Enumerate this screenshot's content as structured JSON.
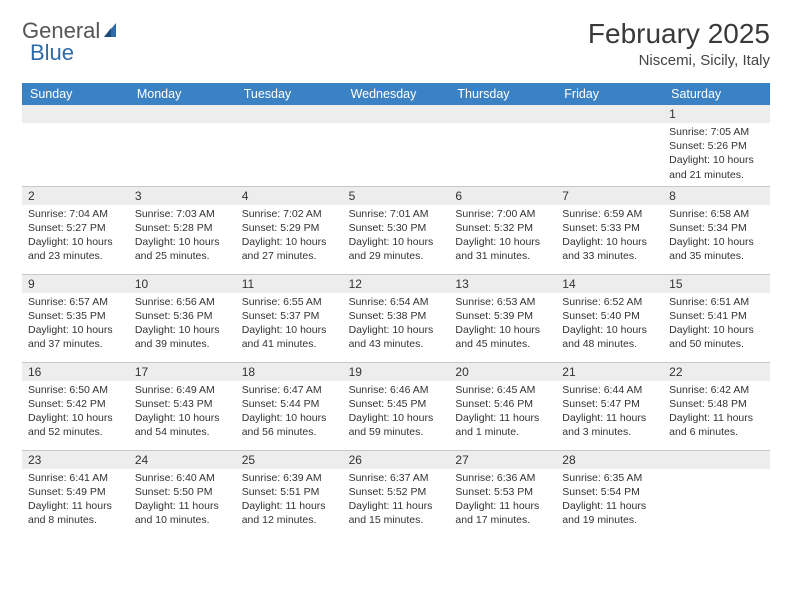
{
  "brand": {
    "part1": "General",
    "part2": "Blue"
  },
  "title": "February 2025",
  "location": "Niscemi, Sicily, Italy",
  "colors": {
    "header_bg": "#3b82c4",
    "header_fg": "#ffffff",
    "daynum_bg": "#ededed",
    "border": "#c8c8c8",
    "logo_blue": "#2f6ba8"
  },
  "weekdays": [
    "Sunday",
    "Monday",
    "Tuesday",
    "Wednesday",
    "Thursday",
    "Friday",
    "Saturday"
  ],
  "grid": {
    "rows": 5,
    "cols": 7,
    "start_index": 6,
    "days_in_month": 28
  },
  "days": {
    "1": {
      "sunrise": "Sunrise: 7:05 AM",
      "sunset": "Sunset: 5:26 PM",
      "dl1": "Daylight: 10 hours",
      "dl2": "and 21 minutes."
    },
    "2": {
      "sunrise": "Sunrise: 7:04 AM",
      "sunset": "Sunset: 5:27 PM",
      "dl1": "Daylight: 10 hours",
      "dl2": "and 23 minutes."
    },
    "3": {
      "sunrise": "Sunrise: 7:03 AM",
      "sunset": "Sunset: 5:28 PM",
      "dl1": "Daylight: 10 hours",
      "dl2": "and 25 minutes."
    },
    "4": {
      "sunrise": "Sunrise: 7:02 AM",
      "sunset": "Sunset: 5:29 PM",
      "dl1": "Daylight: 10 hours",
      "dl2": "and 27 minutes."
    },
    "5": {
      "sunrise": "Sunrise: 7:01 AM",
      "sunset": "Sunset: 5:30 PM",
      "dl1": "Daylight: 10 hours",
      "dl2": "and 29 minutes."
    },
    "6": {
      "sunrise": "Sunrise: 7:00 AM",
      "sunset": "Sunset: 5:32 PM",
      "dl1": "Daylight: 10 hours",
      "dl2": "and 31 minutes."
    },
    "7": {
      "sunrise": "Sunrise: 6:59 AM",
      "sunset": "Sunset: 5:33 PM",
      "dl1": "Daylight: 10 hours",
      "dl2": "and 33 minutes."
    },
    "8": {
      "sunrise": "Sunrise: 6:58 AM",
      "sunset": "Sunset: 5:34 PM",
      "dl1": "Daylight: 10 hours",
      "dl2": "and 35 minutes."
    },
    "9": {
      "sunrise": "Sunrise: 6:57 AM",
      "sunset": "Sunset: 5:35 PM",
      "dl1": "Daylight: 10 hours",
      "dl2": "and 37 minutes."
    },
    "10": {
      "sunrise": "Sunrise: 6:56 AM",
      "sunset": "Sunset: 5:36 PM",
      "dl1": "Daylight: 10 hours",
      "dl2": "and 39 minutes."
    },
    "11": {
      "sunrise": "Sunrise: 6:55 AM",
      "sunset": "Sunset: 5:37 PM",
      "dl1": "Daylight: 10 hours",
      "dl2": "and 41 minutes."
    },
    "12": {
      "sunrise": "Sunrise: 6:54 AM",
      "sunset": "Sunset: 5:38 PM",
      "dl1": "Daylight: 10 hours",
      "dl2": "and 43 minutes."
    },
    "13": {
      "sunrise": "Sunrise: 6:53 AM",
      "sunset": "Sunset: 5:39 PM",
      "dl1": "Daylight: 10 hours",
      "dl2": "and 45 minutes."
    },
    "14": {
      "sunrise": "Sunrise: 6:52 AM",
      "sunset": "Sunset: 5:40 PM",
      "dl1": "Daylight: 10 hours",
      "dl2": "and 48 minutes."
    },
    "15": {
      "sunrise": "Sunrise: 6:51 AM",
      "sunset": "Sunset: 5:41 PM",
      "dl1": "Daylight: 10 hours",
      "dl2": "and 50 minutes."
    },
    "16": {
      "sunrise": "Sunrise: 6:50 AM",
      "sunset": "Sunset: 5:42 PM",
      "dl1": "Daylight: 10 hours",
      "dl2": "and 52 minutes."
    },
    "17": {
      "sunrise": "Sunrise: 6:49 AM",
      "sunset": "Sunset: 5:43 PM",
      "dl1": "Daylight: 10 hours",
      "dl2": "and 54 minutes."
    },
    "18": {
      "sunrise": "Sunrise: 6:47 AM",
      "sunset": "Sunset: 5:44 PM",
      "dl1": "Daylight: 10 hours",
      "dl2": "and 56 minutes."
    },
    "19": {
      "sunrise": "Sunrise: 6:46 AM",
      "sunset": "Sunset: 5:45 PM",
      "dl1": "Daylight: 10 hours",
      "dl2": "and 59 minutes."
    },
    "20": {
      "sunrise": "Sunrise: 6:45 AM",
      "sunset": "Sunset: 5:46 PM",
      "dl1": "Daylight: 11 hours",
      "dl2": "and 1 minute."
    },
    "21": {
      "sunrise": "Sunrise: 6:44 AM",
      "sunset": "Sunset: 5:47 PM",
      "dl1": "Daylight: 11 hours",
      "dl2": "and 3 minutes."
    },
    "22": {
      "sunrise": "Sunrise: 6:42 AM",
      "sunset": "Sunset: 5:48 PM",
      "dl1": "Daylight: 11 hours",
      "dl2": "and 6 minutes."
    },
    "23": {
      "sunrise": "Sunrise: 6:41 AM",
      "sunset": "Sunset: 5:49 PM",
      "dl1": "Daylight: 11 hours",
      "dl2": "and 8 minutes."
    },
    "24": {
      "sunrise": "Sunrise: 6:40 AM",
      "sunset": "Sunset: 5:50 PM",
      "dl1": "Daylight: 11 hours",
      "dl2": "and 10 minutes."
    },
    "25": {
      "sunrise": "Sunrise: 6:39 AM",
      "sunset": "Sunset: 5:51 PM",
      "dl1": "Daylight: 11 hours",
      "dl2": "and 12 minutes."
    },
    "26": {
      "sunrise": "Sunrise: 6:37 AM",
      "sunset": "Sunset: 5:52 PM",
      "dl1": "Daylight: 11 hours",
      "dl2": "and 15 minutes."
    },
    "27": {
      "sunrise": "Sunrise: 6:36 AM",
      "sunset": "Sunset: 5:53 PM",
      "dl1": "Daylight: 11 hours",
      "dl2": "and 17 minutes."
    },
    "28": {
      "sunrise": "Sunrise: 6:35 AM",
      "sunset": "Sunset: 5:54 PM",
      "dl1": "Daylight: 11 hours",
      "dl2": "and 19 minutes."
    }
  }
}
